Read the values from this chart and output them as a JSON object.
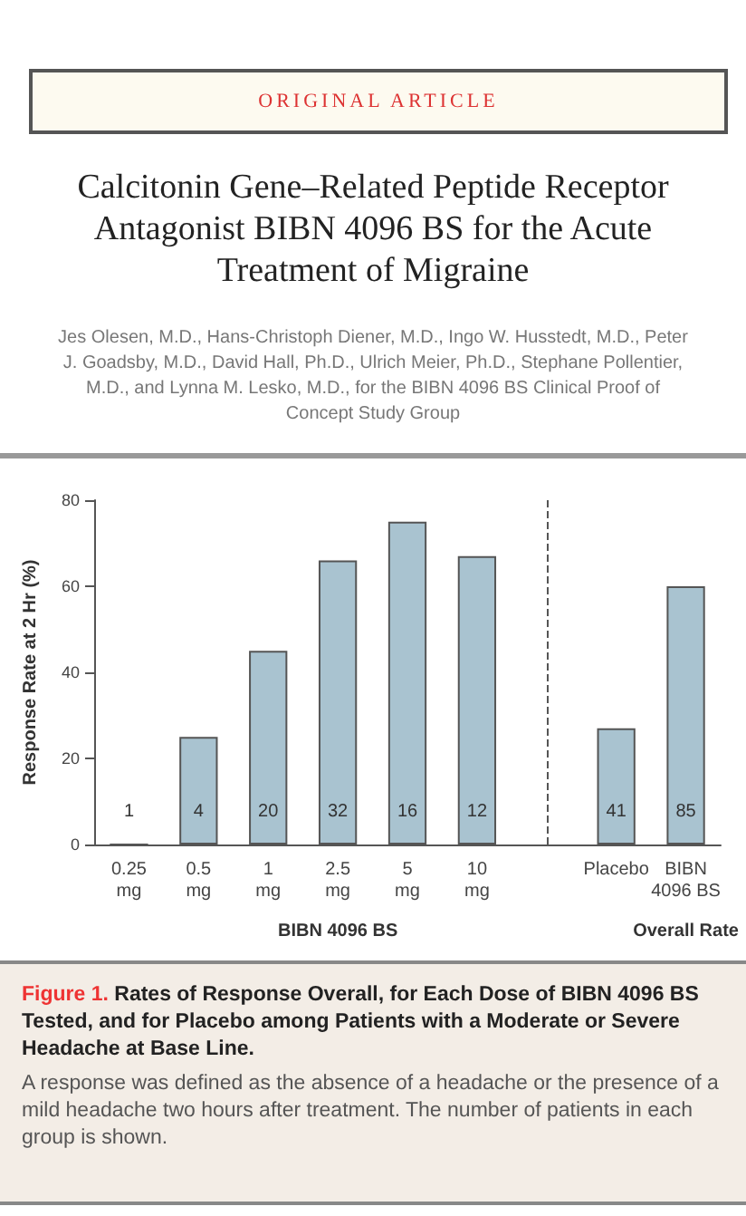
{
  "chart_data": {
    "type": "bar",
    "title": "Calcitonin Gene–Related Peptide Receptor Antagonist BIBN 4096 BS for the Acute Treatment of Migraine",
    "subtitle": "Jes Olesen, M.D., Hans-Christoph Diener, M.D., Ingo W. Husstedt, M.D., Peter J. Goadsby, M.D., David Hall, Ph.D., Ulrich Meier, Ph.D., Stephane Pollentier, M.D., and Lynna M. Lesko, M.D., for the BIBN 4096 BS Clinical Proof of Concept Study Group",
    "ylabel": "Response Rate at 2 Hr (%)",
    "categories": [
      "0.25 mg",
      "0.5 mg",
      "1 mg",
      "2.5 mg",
      "5 mg",
      "10 mg",
      null,
      "Placebo",
      "BIBN 4096 BS"
    ],
    "values": [
      0,
      25,
      45,
      66,
      75,
      67,
      null,
      27,
      60
    ],
    "color": "#a9c3d0",
    "ylim": [
      0,
      80
    ],
    "yticks": [
      0,
      20,
      40,
      60,
      80
    ],
    "ref_lines": [
      {
        "axis": "x",
        "line_style": "dashed",
        "color": "#555555"
      }
    ],
    "annotations": [
      "ORIGINAL ARTICLE",
      "BIBN 4096 BS",
      "Overall Rate",
      "Figure 1.",
      "Rates of Response Overall, for Each Dose of BIBN 4096 BS Tested, and for Placebo among Patients with a Moderate or Severe Headache at Base Line.",
      "A response was defined as the absence of a headache or the presence of a mild headache two hours after treatment. The number of patients in each group is shown.",
      "1",
      "4",
      "20",
      "32",
      "16",
      "12",
      "41",
      "85"
    ]
  }
}
